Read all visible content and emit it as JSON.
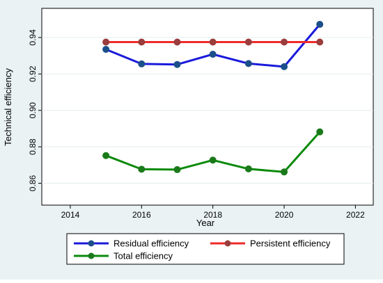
{
  "chart_data": {
    "type": "line",
    "title": "",
    "xlabel": "Year",
    "ylabel": "Technical efficiency",
    "xlim": [
      2013.2,
      2022.5
    ],
    "ylim": [
      0.848,
      0.956
    ],
    "xticks": [
      2014,
      2016,
      2018,
      2020,
      2022
    ],
    "yticks": [
      0.86,
      0.88,
      0.9,
      0.92,
      0.94
    ],
    "ytick_labels": [
      "0.86",
      "0.88",
      "0.90",
      "0.92",
      "0.94"
    ],
    "x": [
      2015,
      2016,
      2017,
      2018,
      2019,
      2020,
      2021
    ],
    "series": [
      {
        "name": "Residual efficiency",
        "color": "#1a1adb",
        "marker_color": "#1c4f8a",
        "values": [
          0.9335,
          0.9255,
          0.9252,
          0.9308,
          0.9257,
          0.924,
          0.9472
        ]
      },
      {
        "name": "Persistent efficiency",
        "color": "#ee2a2a",
        "marker_color": "#9b3d3d",
        "values": [
          0.9375,
          0.9375,
          0.9375,
          0.9375,
          0.9375,
          0.9375,
          0.9375
        ]
      },
      {
        "name": "Total efficiency",
        "color": "#0b8a0b",
        "marker_color": "#1a7a1a",
        "values": [
          0.8752,
          0.8677,
          0.8675,
          0.8727,
          0.8679,
          0.8662,
          0.8882
        ]
      }
    ],
    "grid": true,
    "legend": "bottom"
  }
}
